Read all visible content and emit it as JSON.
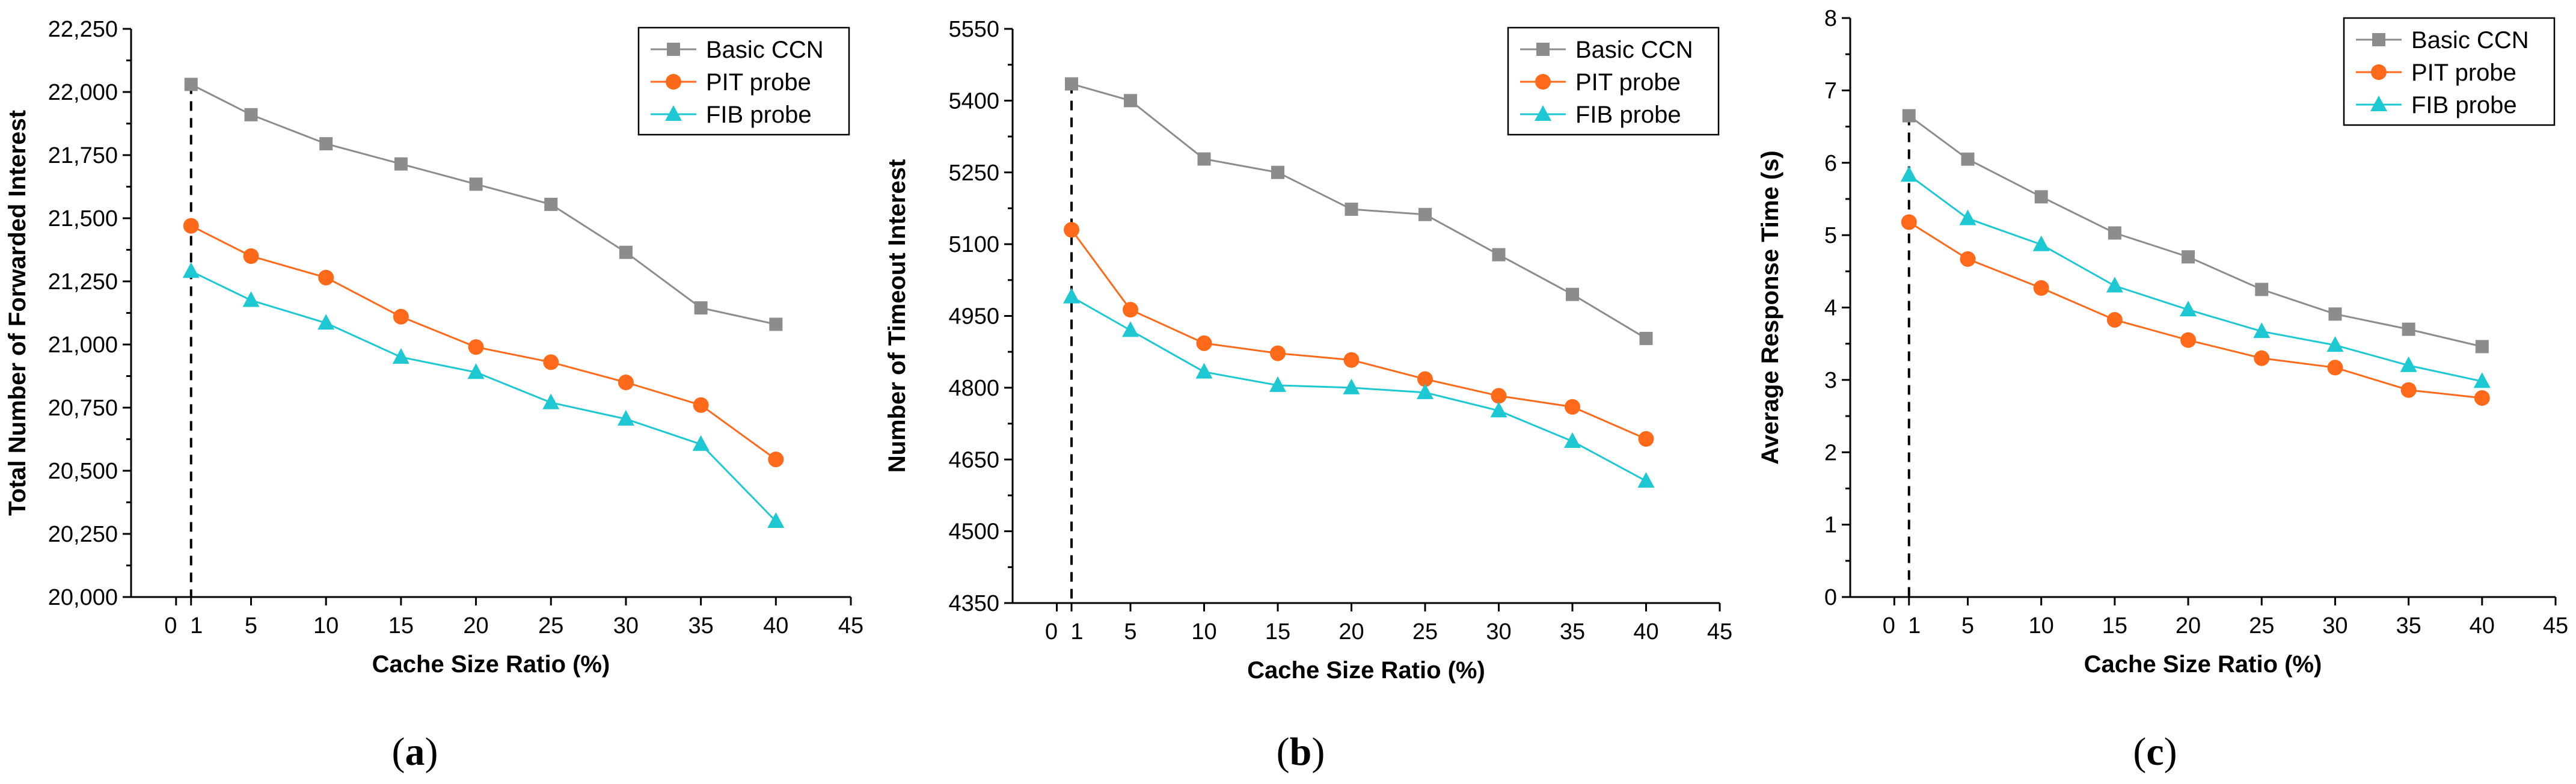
{
  "chart_data": [
    {
      "type": "line",
      "panel_label": "a",
      "xlabel": "Cache Size Ratio (%)",
      "ylabel": "Total Number of Forwarded Interest",
      "xlim": [
        -3,
        45
      ],
      "ylim": [
        20000,
        22250
      ],
      "xticks": [
        0,
        1,
        5,
        10,
        15,
        20,
        25,
        30,
        35,
        40,
        45
      ],
      "xtick_labels": [
        "0",
        "1",
        "5",
        "10",
        "15",
        "20",
        "25",
        "30",
        "35",
        "40",
        "45"
      ],
      "yticks": [
        20000,
        20250,
        20500,
        20750,
        21000,
        21250,
        21500,
        21750,
        22000,
        22250
      ],
      "ytick_labels": [
        "20,000",
        "20,250",
        "20,500",
        "20,750",
        "21,000",
        "21,250",
        "21,500",
        "21,750",
        "22,000",
        "22,250"
      ],
      "x": [
        1,
        5,
        10,
        15,
        20,
        25,
        30,
        35,
        40
      ],
      "dashed_x": 1,
      "legend_position": "top-right",
      "series": [
        {
          "name": "Basic CCN",
          "color": "#8c8c8c",
          "marker": "square",
          "values": [
            22030,
            21910,
            21795,
            21715,
            21635,
            21555,
            21365,
            21145,
            21080
          ]
        },
        {
          "name": "PIT probe",
          "color": "#ff6a1a",
          "marker": "circle",
          "values": [
            21470,
            21350,
            21265,
            21110,
            20990,
            20930,
            20850,
            20760,
            20545
          ]
        },
        {
          "name": "FIB probe",
          "color": "#1ec8d2",
          "marker": "triangle",
          "values": [
            21290,
            21175,
            21085,
            20950,
            20890,
            20770,
            20705,
            20605,
            20300
          ]
        }
      ]
    },
    {
      "type": "line",
      "panel_label": "b",
      "xlabel": "Cache Size Ratio (%)",
      "ylabel": "Number of Timeout Interest",
      "xlim": [
        -3,
        45
      ],
      "ylim": [
        4350,
        5550
      ],
      "xticks": [
        0,
        1,
        5,
        10,
        15,
        20,
        25,
        30,
        35,
        40,
        45
      ],
      "xtick_labels": [
        "0",
        "1",
        "5",
        "10",
        "15",
        "20",
        "25",
        "30",
        "35",
        "40",
        "45"
      ],
      "yticks": [
        4350,
        4500,
        4650,
        4800,
        4950,
        5100,
        5250,
        5400,
        5550
      ],
      "ytick_labels": [
        "4350",
        "4500",
        "4650",
        "4800",
        "4950",
        "5100",
        "5250",
        "5400",
        "5550"
      ],
      "x": [
        1,
        5,
        10,
        15,
        20,
        25,
        30,
        35,
        40
      ],
      "dashed_x": 1,
      "legend_position": "top-right",
      "series": [
        {
          "name": "Basic CCN",
          "color": "#8c8c8c",
          "marker": "square",
          "values": [
            5435,
            5400,
            5278,
            5250,
            5173,
            5162,
            5078,
            4995,
            4903
          ]
        },
        {
          "name": "PIT probe",
          "color": "#ff6a1a",
          "marker": "circle",
          "values": [
            5130,
            4963,
            4893,
            4872,
            4858,
            4818,
            4783,
            4760,
            4693
          ]
        },
        {
          "name": "FIB probe",
          "color": "#1ec8d2",
          "marker": "triangle",
          "values": [
            4990,
            4920,
            4833,
            4805,
            4800,
            4790,
            4752,
            4688,
            4605
          ]
        }
      ]
    },
    {
      "type": "line",
      "panel_label": "c",
      "xlabel": "Cache Size Ratio (%)",
      "ylabel": "Average Response Time (s)",
      "xlim": [
        -3,
        45
      ],
      "ylim": [
        0,
        8
      ],
      "xticks": [
        0,
        1,
        5,
        10,
        15,
        20,
        25,
        30,
        35,
        40,
        45
      ],
      "xtick_labels": [
        "0",
        "1",
        "5",
        "10",
        "15",
        "20",
        "25",
        "30",
        "35",
        "40",
        "45"
      ],
      "yticks": [
        0,
        1,
        2,
        3,
        4,
        5,
        6,
        7,
        8
      ],
      "ytick_labels": [
        "0",
        "1",
        "2",
        "3",
        "4",
        "5",
        "6",
        "7",
        "8"
      ],
      "x": [
        1,
        5,
        10,
        15,
        20,
        25,
        30,
        35,
        40
      ],
      "dashed_x": 1,
      "legend_position": "top-right",
      "series": [
        {
          "name": "Basic CCN",
          "color": "#8c8c8c",
          "marker": "square",
          "values": [
            6.65,
            6.05,
            5.53,
            5.03,
            4.7,
            4.25,
            3.91,
            3.7,
            3.46
          ]
        },
        {
          "name": "PIT probe",
          "color": "#ff6a1a",
          "marker": "circle",
          "values": [
            5.18,
            4.67,
            4.27,
            3.83,
            3.55,
            3.3,
            3.17,
            2.86,
            2.75
          ]
        },
        {
          "name": "FIB probe",
          "color": "#1ec8d2",
          "marker": "triangle",
          "values": [
            5.83,
            5.23,
            4.87,
            4.3,
            3.97,
            3.67,
            3.48,
            3.2,
            2.98
          ]
        }
      ]
    }
  ]
}
